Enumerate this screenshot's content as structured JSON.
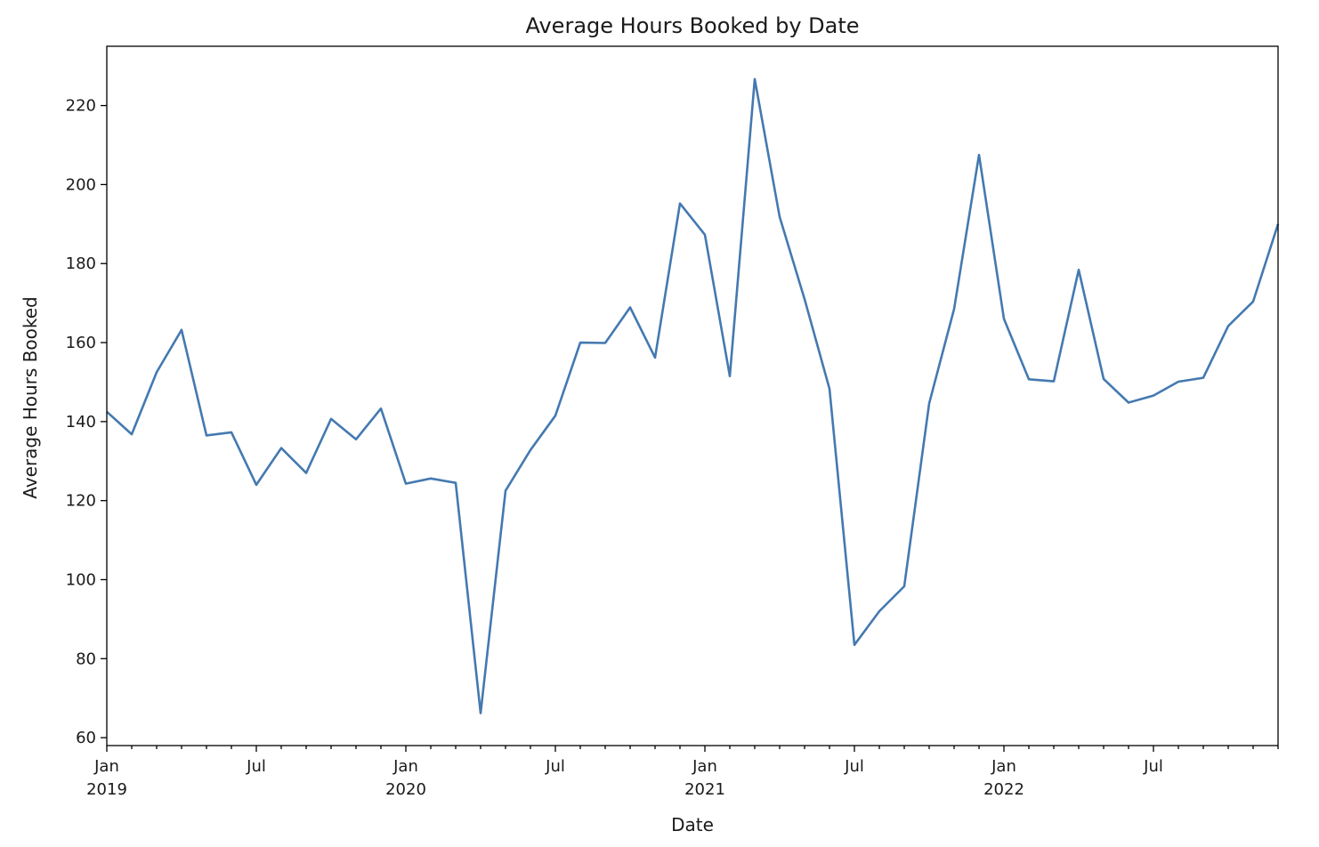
{
  "chart_data": {
    "type": "line",
    "title": "Average Hours Booked by Date",
    "xlabel": "Date",
    "ylabel": "Average Hours Booked",
    "ylim": [
      58,
      235
    ],
    "yticks": [
      60,
      80,
      100,
      120,
      140,
      160,
      180,
      200,
      220
    ],
    "xlim": [
      "2019-01",
      "2022-12"
    ],
    "grid": false,
    "xticks_major": [
      {
        "date": "2019-01",
        "label": "Jan",
        "sublabel": "2019"
      },
      {
        "date": "2019-07",
        "label": "Jul",
        "sublabel": ""
      },
      {
        "date": "2020-01",
        "label": "Jan",
        "sublabel": "2020"
      },
      {
        "date": "2020-07",
        "label": "Jul",
        "sublabel": ""
      },
      {
        "date": "2021-01",
        "label": "Jan",
        "sublabel": "2021"
      },
      {
        "date": "2021-07",
        "label": "Jul",
        "sublabel": ""
      },
      {
        "date": "2022-01",
        "label": "Jan",
        "sublabel": "2022"
      },
      {
        "date": "2022-07",
        "label": "Jul",
        "sublabel": ""
      }
    ],
    "series": [
      {
        "color": "#4479b0",
        "x": [
          "2019-01",
          "2019-02",
          "2019-03",
          "2019-04",
          "2019-05",
          "2019-06",
          "2019-07",
          "2019-08",
          "2019-09",
          "2019-10",
          "2019-11",
          "2019-12",
          "2020-01",
          "2020-02",
          "2020-03",
          "2020-04",
          "2020-05",
          "2020-06",
          "2020-07",
          "2020-08",
          "2020-09",
          "2020-10",
          "2020-11",
          "2020-12",
          "2021-01",
          "2021-02",
          "2021-03",
          "2021-04",
          "2021-05",
          "2021-06",
          "2021-07",
          "2021-08",
          "2021-09",
          "2021-10",
          "2021-11",
          "2021-12",
          "2022-01",
          "2022-02",
          "2022-03",
          "2022-04",
          "2022-05",
          "2022-06",
          "2022-07",
          "2022-08",
          "2022-09",
          "2022-10",
          "2022-11",
          "2022-12"
        ],
        "values": [
          142.5,
          136.8,
          152.5,
          163.2,
          136.5,
          137.3,
          124.0,
          133.3,
          127.0,
          140.7,
          135.5,
          143.3,
          124.3,
          125.6,
          124.5,
          66.2,
          122.5,
          132.8,
          141.5,
          160.0,
          159.9,
          168.9,
          156.2,
          195.2,
          187.3,
          151.5,
          226.7,
          191.8,
          171.0,
          148.3,
          83.5,
          92.0,
          98.3,
          144.6,
          168.5,
          207.5,
          166.0,
          150.7,
          150.2,
          178.4,
          150.8,
          144.8,
          146.6,
          150.1,
          151.1,
          164.2,
          170.4,
          190.0
        ]
      }
    ]
  }
}
